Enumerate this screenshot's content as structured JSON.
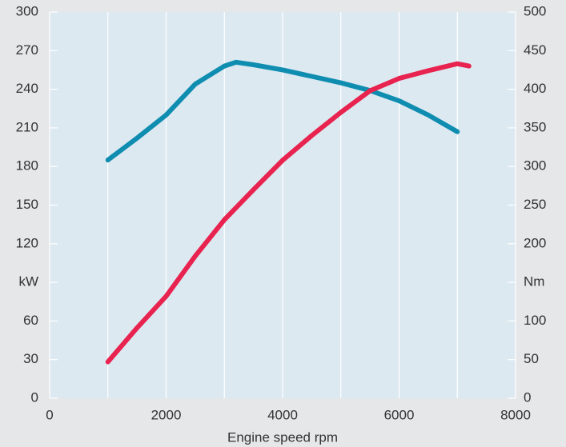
{
  "chart_data": {
    "type": "line",
    "x_label": "Engine speed rpm",
    "xlim": [
      0,
      8000
    ],
    "xticks": [
      0,
      2000,
      4000,
      6000,
      8000
    ],
    "x_minor_ticks": [
      1000,
      3000,
      5000,
      7000
    ],
    "ylim": [
      0,
      300
    ],
    "yticks": [
      0,
      30,
      60,
      {
        "value": 90,
        "label": "kW"
      },
      120,
      150,
      180,
      210,
      240,
      270,
      300
    ],
    "y2lim": [
      0,
      500
    ],
    "y2ticks": [
      0,
      50,
      100,
      {
        "value": 150,
        "label": "Nm"
      },
      200,
      250,
      300,
      350,
      400,
      450,
      500
    ],
    "grid": true,
    "series": [
      {
        "color": "#0f8db0",
        "axis": "y",
        "x": [
          1000,
          1500,
          2000,
          2500,
          3000,
          3200,
          3500,
          4000,
          4500,
          5000,
          5500,
          6000,
          6500,
          7000
        ],
        "values": [
          185,
          202,
          220,
          244,
          258,
          261,
          259,
          255,
          250,
          245,
          239,
          231,
          220,
          207
        ]
      },
      {
        "color": "#e8234f",
        "axis": "y2",
        "x": [
          1000,
          1500,
          2000,
          2500,
          3000,
          3500,
          4000,
          4500,
          5000,
          5500,
          6000,
          6500,
          7000,
          7200
        ],
        "values": [
          47,
          91,
          132,
          184,
          231,
          270,
          308,
          340,
          370,
          398,
          414,
          424,
          433,
          430
        ]
      }
    ]
  }
}
